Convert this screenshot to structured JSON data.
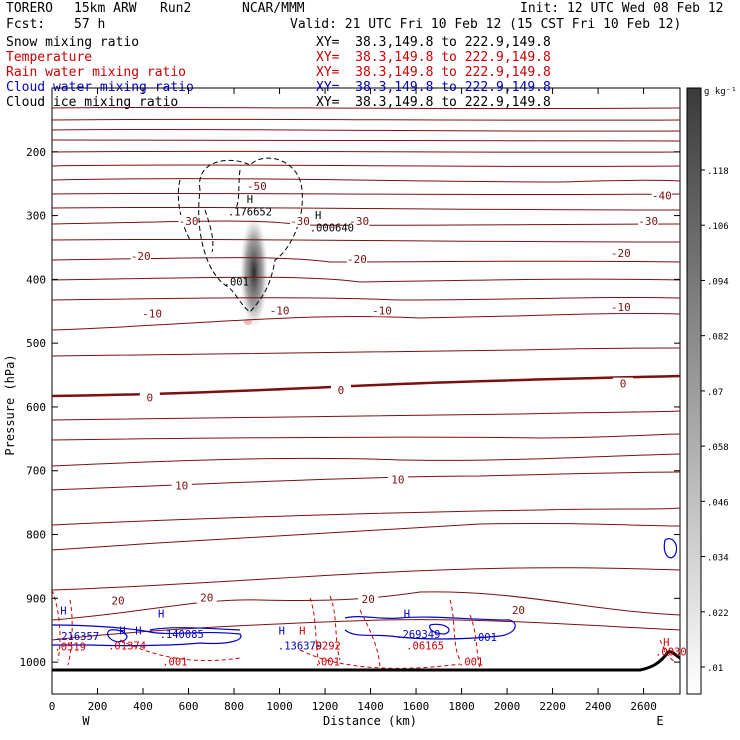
{
  "header": {
    "model": "TORERO",
    "resolution": "15km ARW",
    "run": "Run2",
    "org": "NCAR/MMM",
    "init": "Init: 12 UTC Wed 08 Feb 12",
    "fcst_label": "Fcst:",
    "fcst_value": "57 h",
    "valid": "Valid: 21 UTC Fri 10 Feb 12 (15 CST Fri 10 Feb 12)"
  },
  "fields": [
    {
      "name": "Snow mixing ratio",
      "xy": "XY=  38.3,149.8 to 222.9,149.8",
      "color": "#000000"
    },
    {
      "name": "Temperature",
      "xy": "XY=  38.3,149.8 to 222.9,149.8",
      "color": "#cc0000"
    },
    {
      "name": "Rain water mixing ratio",
      "xy": "XY=  38.3,149.8 to 222.9,149.8",
      "color": "#cc0000"
    },
    {
      "name": "Cloud water mixing ratio",
      "xy": "XY=  38.3,149.8 to 222.9,149.8",
      "color": "#0000cc"
    },
    {
      "name": "Cloud ice mixing ratio",
      "xy": "XY=  38.3,149.8 to 222.9,149.8",
      "color": "#000000"
    }
  ],
  "colorbar": {
    "unit": "g kg⁻¹",
    "ticks": [
      ".01",
      ".022",
      ".034",
      ".046",
      ".058",
      ".07",
      ".082",
      ".094",
      ".106",
      ".118"
    ]
  },
  "chart_data": {
    "type": "contour-cross-section",
    "xlabel": "Distance (km)",
    "ylabel": "Pressure (hPa)",
    "xlim": [
      0,
      2760
    ],
    "ylim": [
      1050,
      100
    ],
    "x_ticks": [
      "0",
      "200",
      "400",
      "600",
      "800",
      "1000",
      "1200",
      "1400",
      "1600",
      "1800",
      "2000",
      "2200",
      "2400",
      "2600"
    ],
    "y_ticks": [
      "200",
      "300",
      "400",
      "500",
      "600",
      "700",
      "800",
      "900",
      "1000"
    ],
    "left_end_label": "W",
    "right_end_label": "E",
    "temperature_contours": [
      {
        "value": "-50",
        "km": 900,
        "p": 255
      },
      {
        "value": "-40",
        "km": 2680,
        "p": 270
      },
      {
        "value": "-30",
        "km": 600,
        "p": 310
      },
      {
        "value": "-30",
        "km": 1090,
        "p": 310
      },
      {
        "value": "-30",
        "km": 1350,
        "p": 310
      },
      {
        "value": "-30",
        "km": 2620,
        "p": 310
      },
      {
        "value": "-20",
        "km": 390,
        "p": 365
      },
      {
        "value": "-20",
        "km": 1340,
        "p": 370
      },
      {
        "value": "-20",
        "km": 2500,
        "p": 360
      },
      {
        "value": "-10",
        "km": 440,
        "p": 455
      },
      {
        "value": "-10",
        "km": 1000,
        "p": 450
      },
      {
        "value": "-10",
        "km": 1450,
        "p": 450
      },
      {
        "value": "-10",
        "km": 2500,
        "p": 445
      },
      {
        "value": "0",
        "km": 430,
        "p": 587
      },
      {
        "value": "0",
        "km": 1270,
        "p": 575
      },
      {
        "value": "0",
        "km": 2510,
        "p": 565
      },
      {
        "value": "10",
        "km": 570,
        "p": 725
      },
      {
        "value": "10",
        "km": 1520,
        "p": 715
      },
      {
        "value": "20",
        "km": 290,
        "p": 905
      },
      {
        "value": "20",
        "km": 680,
        "p": 900
      },
      {
        "value": "20",
        "km": 1390,
        "p": 903
      },
      {
        "value": "20",
        "km": 2050,
        "p": 920
      }
    ],
    "annotations": [
      {
        "text": "H",
        "km": 870,
        "p": 280,
        "color": "#000000"
      },
      {
        "text": ".176652",
        "km": 870,
        "p": 300,
        "color": "#000000"
      },
      {
        "text": "H",
        "km": 1170,
        "p": 305,
        "color": "#000000"
      },
      {
        "text": ".000640",
        "km": 1230,
        "p": 325,
        "color": "#000000"
      },
      {
        "text": ".001",
        "km": 810,
        "p": 410,
        "color": "#000000"
      },
      {
        "text": "H",
        "km": 50,
        "p": 925,
        "color": "#0000cc"
      },
      {
        "text": ".216357",
        "km": 110,
        "p": 965,
        "color": "#0000cc"
      },
      {
        "text": ".0519",
        "km": 80,
        "p": 982,
        "color": "#cc0000"
      },
      {
        "text": "H",
        "km": 480,
        "p": 930,
        "color": "#0000cc"
      },
      {
        "text": ".140085",
        "km": 570,
        "p": 962,
        "color": "#0000cc"
      },
      {
        "text": "H",
        "km": 310,
        "p": 957,
        "color": "#0000cc"
      },
      {
        "text": "H",
        "km": 380,
        "p": 957,
        "color": "#0000cc"
      },
      {
        "text": ".01374",
        "km": 330,
        "p": 980,
        "color": "#cc0000"
      },
      {
        "text": "H",
        "km": 1010,
        "p": 957,
        "color": "#0000cc"
      },
      {
        "text": "H",
        "km": 1100,
        "p": 957,
        "color": "#cc0000"
      },
      {
        "text": ".136379",
        "km": 1090,
        "p": 980,
        "color": "#0000cc"
      },
      {
        "text": ".0292",
        "km": 1200,
        "p": 980,
        "color": "#cc0000"
      },
      {
        "text": "H",
        "km": 1560,
        "p": 930,
        "color": "#0000cc"
      },
      {
        "text": ".269349",
        "km": 1610,
        "p": 962,
        "color": "#0000cc"
      },
      {
        "text": ".06165",
        "km": 1640,
        "p": 980,
        "color": "#cc0000"
      },
      {
        "text": ".001",
        "km": 1900,
        "p": 967,
        "color": "#0000cc"
      },
      {
        "text": ".001",
        "km": 540,
        "p": 1005,
        "color": "#cc0000"
      },
      {
        "text": ".001",
        "km": 1210,
        "p": 1005,
        "color": "#cc0000"
      },
      {
        "text": ".001",
        "km": 1840,
        "p": 1005,
        "color": "#cc0000"
      },
      {
        "text": "H",
        "km": 2700,
        "p": 975,
        "color": "#cc0000"
      },
      {
        "text": ".0030",
        "km": 2720,
        "p": 990,
        "color": "#cc0000"
      }
    ]
  }
}
